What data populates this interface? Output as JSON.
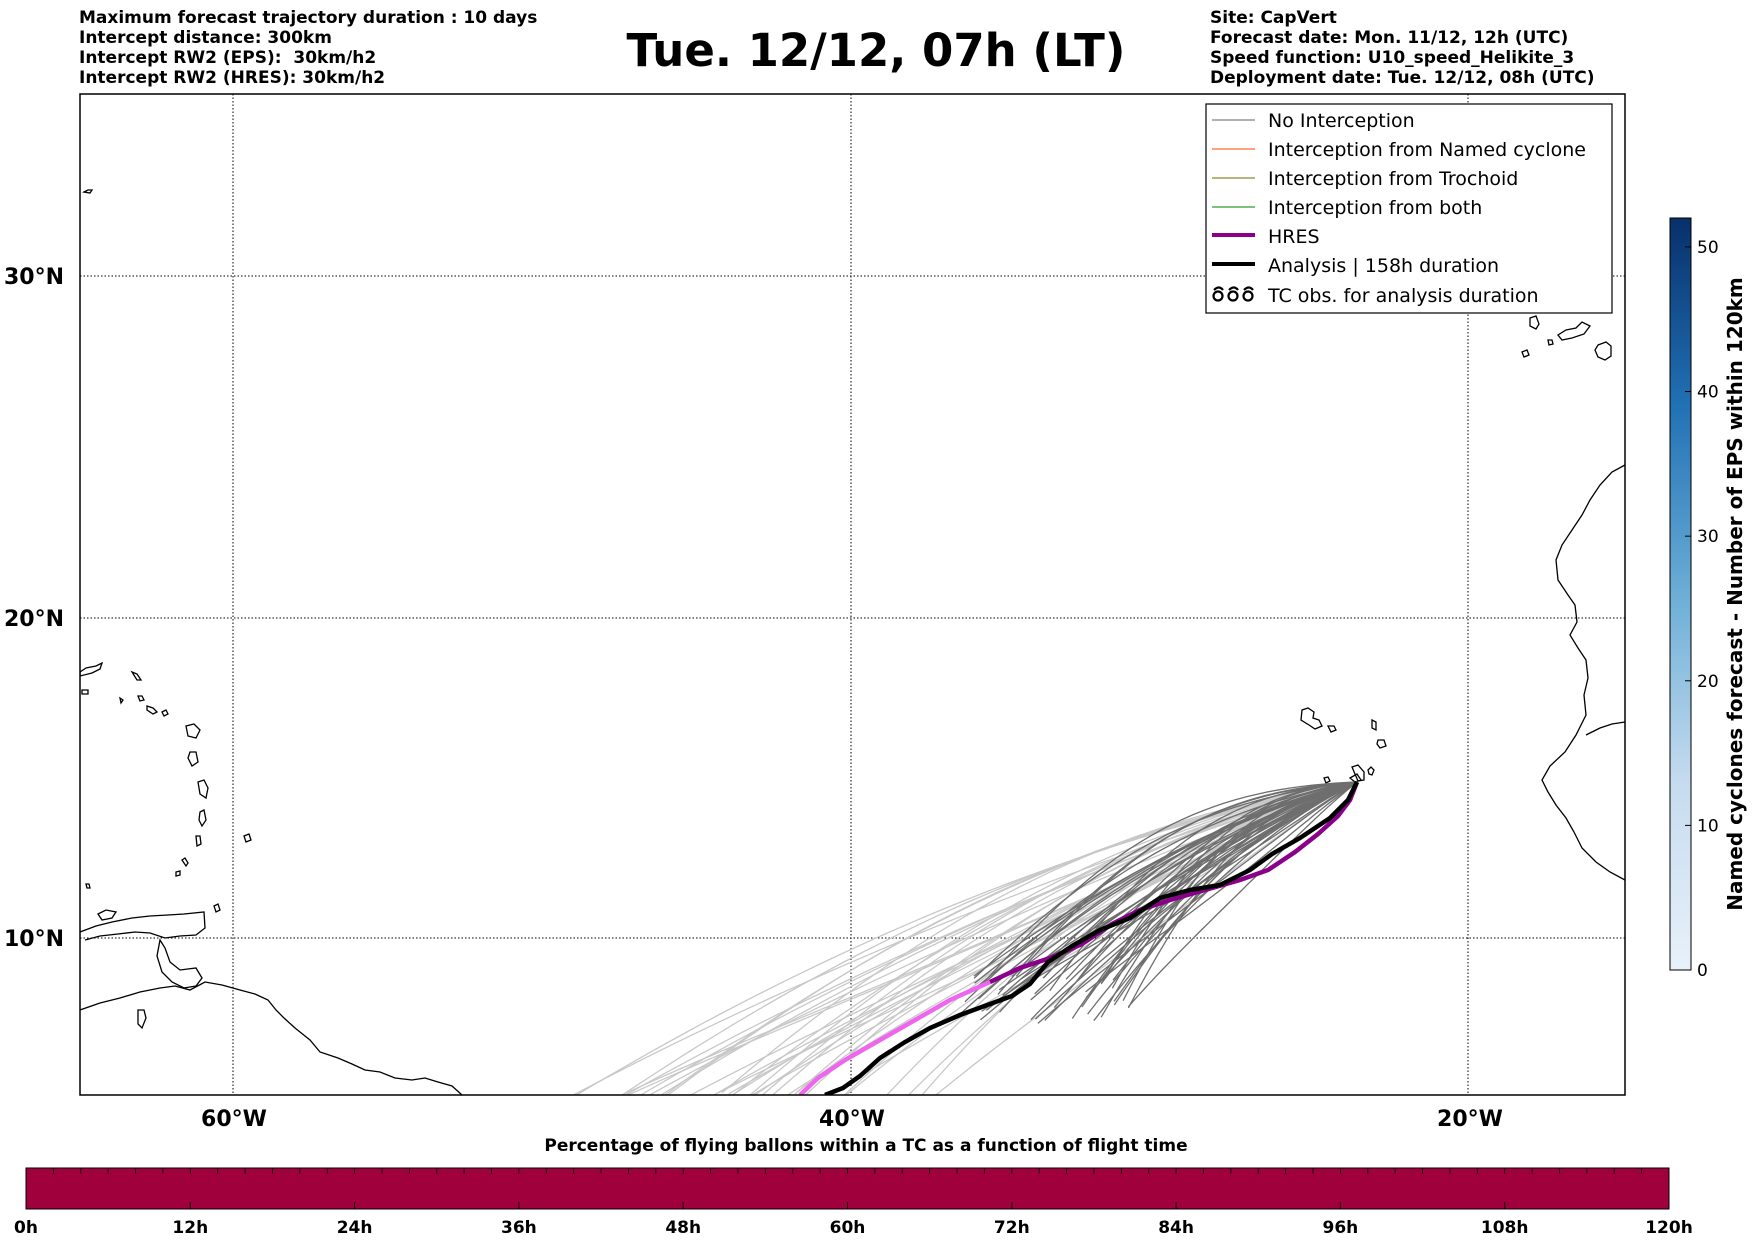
{
  "header": {
    "left_lines": [
      "Maximum forecast trajectory duration : 10 days",
      "Intercept distance: 300km",
      "Intercept RW2 (EPS):  30km/h2",
      "Intercept RW2 (HRES): 30km/h2"
    ],
    "title": "Tue. 12/12, 07h (LT)",
    "right_lines": [
      "Site: CapVert",
      "Forecast date: Mon. 11/12, 12h (UTC)",
      "Speed function: U10_speed_Helikite_3",
      "Deployment date: Tue. 12/12, 08h (UTC)"
    ]
  },
  "map": {
    "lat_labels": [
      "30°N",
      "20°N",
      "10°N"
    ],
    "lon_labels": [
      "60°W",
      "40°W",
      "20°W"
    ]
  },
  "legend": {
    "items": [
      {
        "label": "No Interception",
        "color": "#808080",
        "style": "thin-line"
      },
      {
        "label": "Interception from Named cyclone",
        "color": "#ff6a33",
        "style": "thin-line"
      },
      {
        "label": "Interception from Trochoid",
        "color": "#8b8b2c",
        "style": "thin-line"
      },
      {
        "label": "Interception from both",
        "color": "#2e9c2e",
        "style": "thin-line"
      },
      {
        "label": "HRES",
        "color": "#8b008b",
        "style": "thick-line"
      },
      {
        "label": "Analysis | 158h duration",
        "color": "#000000",
        "style": "thick-line"
      },
      {
        "label": "TC obs. for analysis duration",
        "color": "#000000",
        "style": "cyclone-symbols"
      }
    ]
  },
  "colorbar_right": {
    "label": "Named cyclones forecast - Number of EPS within 120km",
    "ticks": [
      "0",
      "10",
      "20",
      "30",
      "40",
      "50"
    ],
    "color_low": "#e8f1fa",
    "color_high": "#08306b"
  },
  "bottom_bar": {
    "label": "Percentage of flying ballons within a TC as a function of flight time",
    "color": "#a0003c",
    "ticks": [
      "0h",
      "12h",
      "24h",
      "36h",
      "48h",
      "60h",
      "72h",
      "84h",
      "96h",
      "108h",
      "120h"
    ]
  }
}
